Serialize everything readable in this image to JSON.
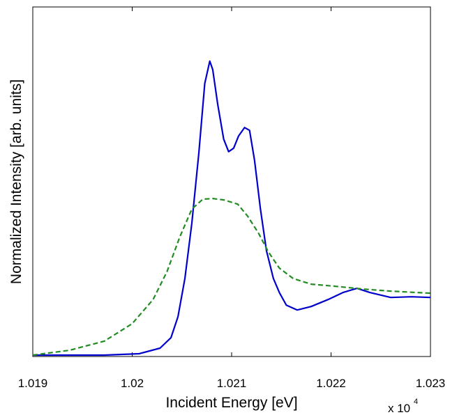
{
  "chart_data": {
    "type": "line",
    "x_label": "Incident Energy [eV]",
    "y_label": "Normalized Intensity [arb. units]",
    "x_multiplier": "x 10",
    "x_multiplier_exponent": "4",
    "xlim": [
      1.019,
      1.023
    ],
    "xticks": [
      1.019,
      1.02,
      1.021,
      1.022,
      1.023
    ],
    "ylim": [
      0,
      1
    ],
    "series": [
      {
        "color": "#0000cc",
        "dash": false,
        "x": [
          1.019,
          1.01972,
          1.02007,
          1.02028,
          1.02039,
          1.02046,
          1.02053,
          1.0206,
          1.02067,
          1.02073,
          1.02078,
          1.02081,
          1.02086,
          1.02092,
          1.02097,
          1.02102,
          1.02107,
          1.02113,
          1.02118,
          1.02123,
          1.02129,
          1.02135,
          1.02142,
          1.02148,
          1.02155,
          1.02166,
          1.0218,
          1.02197,
          1.02212,
          1.02226,
          1.02239,
          1.0226,
          1.02281,
          1.023
        ],
        "values": [
          0.004,
          0.004,
          0.008,
          0.024,
          0.054,
          0.114,
          0.223,
          0.382,
          0.582,
          0.781,
          0.845,
          0.821,
          0.721,
          0.622,
          0.586,
          0.596,
          0.631,
          0.655,
          0.647,
          0.562,
          0.422,
          0.303,
          0.223,
          0.183,
          0.147,
          0.133,
          0.143,
          0.163,
          0.183,
          0.195,
          0.183,
          0.169,
          0.171,
          0.169
        ]
      },
      {
        "color": "#228b22",
        "dash": true,
        "x": [
          1.019,
          1.01937,
          1.01972,
          1.02,
          1.02021,
          1.02035,
          1.02048,
          1.0206,
          1.02071,
          1.02081,
          1.02092,
          1.02106,
          1.02116,
          1.02127,
          1.02137,
          1.02148,
          1.02162,
          1.0218,
          1.02204,
          1.02232,
          1.0226,
          1.023
        ],
        "values": [
          0.004,
          0.018,
          0.044,
          0.094,
          0.163,
          0.243,
          0.343,
          0.422,
          0.45,
          0.452,
          0.448,
          0.436,
          0.402,
          0.353,
          0.299,
          0.253,
          0.223,
          0.207,
          0.201,
          0.193,
          0.187,
          0.181
        ]
      }
    ]
  }
}
